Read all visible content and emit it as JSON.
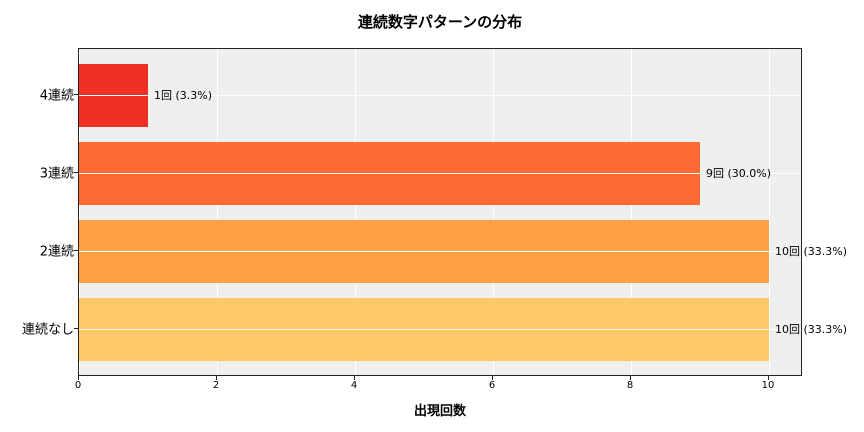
{
  "chart_data": {
    "type": "bar",
    "orientation": "horizontal",
    "title": "連続数字パターンの分布",
    "xlabel": "出現回数",
    "ylabel": "",
    "categories": [
      "4連続",
      "3連続",
      "2連続",
      "連続なし"
    ],
    "values": [
      1,
      9,
      10,
      10
    ],
    "percentages": [
      3.3,
      30.0,
      33.3,
      33.3
    ],
    "data_labels": [
      "1回 (3.3%)",
      "9回 (30.0%)",
      "10回 (33.3%)",
      "10回 (33.3%)"
    ],
    "colors": [
      "#ee3124",
      "#fd6a33",
      "#fda046",
      "#fec966"
    ],
    "xlim": [
      0,
      10.5
    ],
    "xticks": [
      "0",
      "2",
      "4",
      "6",
      "8",
      "10"
    ],
    "grid": true,
    "legend": null,
    "background": "#efefef"
  }
}
